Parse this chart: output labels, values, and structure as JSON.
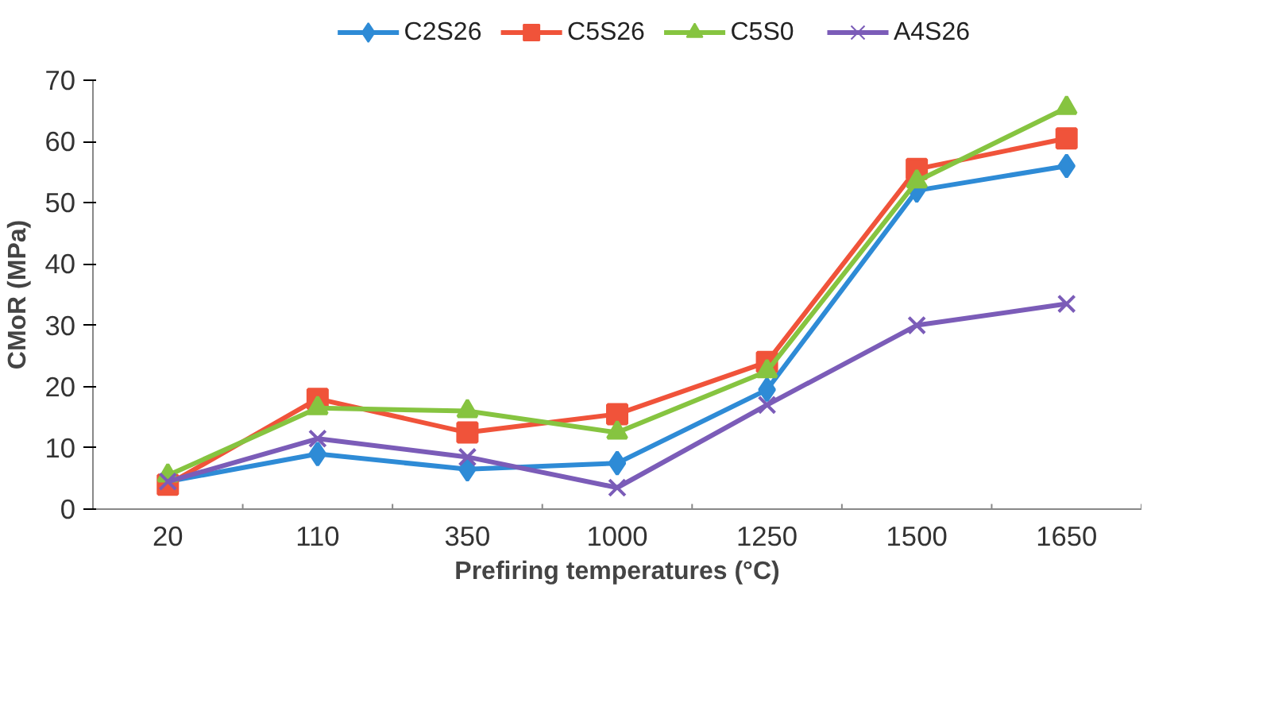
{
  "chart_data": {
    "type": "line",
    "xlabel": "Prefiring temperatures (°C)",
    "ylabel": "CMoR (MPa)",
    "categories": [
      "20",
      "110",
      "350",
      "1000",
      "1250",
      "1500",
      "1650"
    ],
    "series": [
      {
        "name": "C2S26",
        "color": "#2e8bd6",
        "marker": "diamond",
        "values": [
          4.5,
          9,
          6.5,
          7.5,
          19.5,
          52,
          56
        ]
      },
      {
        "name": "C5S26",
        "color": "#f0533a",
        "marker": "square",
        "values": [
          4,
          18,
          12.5,
          15.5,
          24,
          55.5,
          60.5
        ]
      },
      {
        "name": "C5S0",
        "color": "#86c440",
        "marker": "triangle",
        "values": [
          5.5,
          16.5,
          16,
          12.5,
          22.5,
          53.5,
          65.5
        ]
      },
      {
        "name": "A4S26",
        "color": "#7b5cb8",
        "marker": "cross",
        "values": [
          4.5,
          11.5,
          8.5,
          3.5,
          17,
          30,
          33.5
        ]
      }
    ],
    "ylim": [
      0,
      70
    ],
    "yticks": [
      0,
      10,
      20,
      30,
      40,
      50,
      60,
      70
    ],
    "grid": false,
    "legend": "top"
  }
}
